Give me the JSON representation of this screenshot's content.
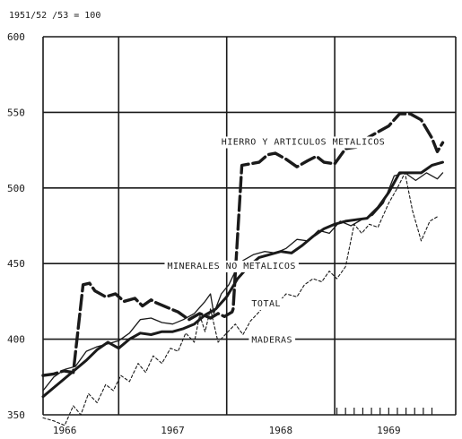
{
  "chart_data": {
    "type": "line",
    "unit_label": "1951/52 /53 = 100",
    "ylim": [
      350,
      600
    ],
    "yticks": [
      350,
      400,
      450,
      500,
      550,
      600
    ],
    "xlim": [
      1965.8,
      1969.62
    ],
    "xticks": [
      {
        "label": "1966",
        "x": 1966.0
      },
      {
        "label": "1967",
        "x": 1967.0
      },
      {
        "label": "1968",
        "x": 1968.0
      },
      {
        "label": "1969",
        "x": 1969.0
      }
    ],
    "grid": true,
    "series": [
      {
        "name": "HIERRO Y ARTICULOS METALICOS",
        "style": "dashed-thick",
        "x": [
          1965.8,
          1965.9,
          1965.99,
          1966.08,
          1966.17,
          1966.23,
          1966.28,
          1966.38,
          1966.47,
          1966.55,
          1966.65,
          1966.72,
          1966.8,
          1966.85,
          1966.95,
          1967.05,
          1967.15,
          1967.25,
          1967.35,
          1967.42,
          1967.48,
          1967.55,
          1967.56,
          1967.64,
          1967.72,
          1967.8,
          1967.88,
          1967.95,
          1968.05,
          1968.15,
          1968.25,
          1968.33,
          1968.4,
          1968.5,
          1968.6,
          1968.7,
          1968.8,
          1968.9,
          1969.0,
          1969.1,
          1969.2,
          1969.3,
          1969.4,
          1969.45,
          1969.5
        ],
        "y": [
          376,
          377,
          379,
          378,
          436,
          437,
          432,
          428,
          430,
          425,
          427,
          422,
          426,
          424,
          421,
          418,
          413,
          417,
          414,
          417,
          415,
          418,
          420,
          515,
          516,
          517,
          522,
          523,
          519,
          514,
          518,
          521,
          517,
          516,
          526,
          527,
          533,
          537,
          541,
          549,
          549,
          545,
          533,
          524,
          530
        ]
      },
      {
        "name": "MINERALES NO METALICOS",
        "style": "solid-thin",
        "x": [
          1965.8,
          1965.9,
          1966.0,
          1966.1,
          1966.2,
          1966.3,
          1966.4,
          1966.5,
          1966.6,
          1966.7,
          1966.8,
          1966.9,
          1967.0,
          1967.1,
          1967.2,
          1967.3,
          1967.35,
          1967.38,
          1967.45,
          1967.52,
          1967.58,
          1967.65,
          1967.75,
          1967.85,
          1967.95,
          1968.05,
          1968.15,
          1968.25,
          1968.35,
          1968.45,
          1968.55,
          1968.65,
          1968.75,
          1968.85,
          1968.95,
          1969.05,
          1969.15,
          1969.25,
          1969.35,
          1969.45,
          1969.5
        ],
        "y": [
          366,
          375,
          380,
          382,
          392,
          395,
          397,
          399,
          404,
          413,
          414,
          411,
          410,
          413,
          417,
          425,
          430,
          417,
          430,
          436,
          445,
          452,
          456,
          458,
          457,
          460,
          466,
          465,
          472,
          470,
          478,
          475,
          479,
          482,
          490,
          508,
          510,
          505,
          510,
          506,
          510
        ]
      },
      {
        "name": "TOTAL",
        "style": "solid-thick",
        "x": [
          1965.8,
          1965.9,
          1966.0,
          1966.1,
          1966.2,
          1966.3,
          1966.4,
          1966.5,
          1966.6,
          1966.7,
          1966.8,
          1966.9,
          1967.0,
          1967.1,
          1967.2,
          1967.3,
          1967.4,
          1967.5,
          1967.6,
          1967.7,
          1967.8,
          1967.9,
          1968.0,
          1968.1,
          1968.2,
          1968.3,
          1968.4,
          1968.5,
          1968.6,
          1968.7,
          1968.8,
          1968.9,
          1969.0,
          1969.1,
          1969.2,
          1969.3,
          1969.4,
          1969.5
        ],
        "y": [
          362,
          368,
          374,
          380,
          386,
          393,
          398,
          394,
          400,
          404,
          403,
          405,
          405,
          407,
          410,
          416,
          420,
          428,
          440,
          448,
          454,
          456,
          458,
          457,
          462,
          468,
          473,
          476,
          478,
          479,
          480,
          487,
          497,
          510,
          510,
          510,
          515,
          517
        ]
      },
      {
        "name": "MADERAS",
        "style": "dotted-thin",
        "x": [
          1965.8,
          1965.9,
          1966.0,
          1966.08,
          1966.15,
          1966.22,
          1966.3,
          1966.38,
          1966.45,
          1966.52,
          1966.6,
          1966.68,
          1966.75,
          1966.82,
          1966.9,
          1966.98,
          1967.05,
          1967.12,
          1967.2,
          1967.25,
          1967.3,
          1967.35,
          1967.42,
          1967.5,
          1967.58,
          1967.65,
          1967.72,
          1967.8,
          1967.88,
          1967.95,
          1968.05,
          1968.15,
          1968.22,
          1968.3,
          1968.38,
          1968.45,
          1968.52,
          1968.6,
          1968.68,
          1968.75,
          1968.82,
          1968.9,
          1969.0,
          1969.08,
          1969.15,
          1969.22,
          1969.3,
          1969.38,
          1969.45
        ],
        "y": [
          348,
          346,
          343,
          356,
          350,
          364,
          358,
          370,
          366,
          376,
          372,
          384,
          378,
          389,
          384,
          394,
          392,
          404,
          398,
          416,
          405,
          420,
          398,
          404,
          410,
          403,
          412,
          418,
          425,
          422,
          430,
          428,
          436,
          440,
          438,
          445,
          440,
          448,
          476,
          470,
          476,
          474,
          490,
          500,
          510,
          485,
          465,
          478,
          481
        ]
      }
    ],
    "annotations": [
      {
        "text": "HIERRO Y ARTICULOS METALICOS",
        "x": 1967.45,
        "y": 531
      },
      {
        "text": "MINERALES NO METALICOS",
        "x": 1966.95,
        "y": 449
      },
      {
        "text": "TOTAL",
        "x": 1967.73,
        "y": 424
      },
      {
        "text": "MADERAS",
        "x": 1967.73,
        "y": 400
      }
    ]
  }
}
